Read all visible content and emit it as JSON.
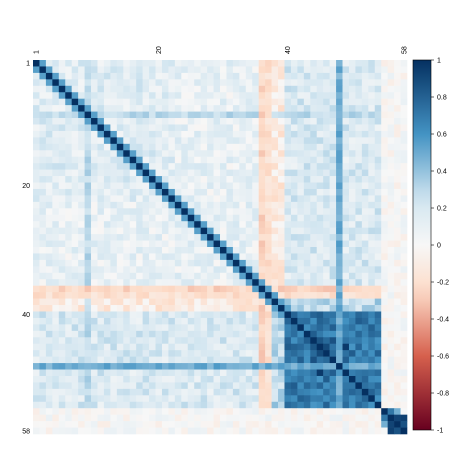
{
  "chart_data": {
    "type": "heatmap",
    "title": "",
    "xlabel": "",
    "ylabel": "",
    "n_vars": 58,
    "x_tick_labels": [
      "1",
      "20",
      "40",
      "58"
    ],
    "y_tick_labels": [
      "1",
      "20",
      "40",
      "58"
    ],
    "x_tick_indices": [
      1,
      20,
      40,
      58
    ],
    "y_tick_indices": [
      1,
      20,
      40,
      58
    ],
    "value_range": [
      -1,
      1
    ],
    "diagonal_value": 1,
    "colorbar": {
      "ticks": [
        "1",
        "0.8",
        "0.6",
        "0.4",
        "0.2",
        "0",
        "-0.2",
        "-0.4",
        "-0.6",
        "-0.8",
        "-1"
      ],
      "tick_values": [
        1,
        0.8,
        0.6,
        0.4,
        0.2,
        0,
        -0.2,
        -0.4,
        -0.6,
        -0.8,
        -1
      ],
      "colors": {
        "neg_strong": "#67001f",
        "neg_mid": "#d6604d",
        "neg_light": "#fddbc7",
        "neutral": "#f7f7f7",
        "pos_light": "#d1e5f0",
        "pos_mid": "#4393c3",
        "pos_strong": "#053061"
      }
    },
    "blocks": [
      {
        "rows": [
          1,
          22
        ],
        "cols": [
          1,
          22
        ],
        "value": 0.15
      },
      {
        "rows": [
          1,
          22
        ],
        "cols": [
          37,
          54
        ],
        "value": 0.2
      },
      {
        "rows": [
          23,
          35
        ],
        "cols": [
          1,
          35
        ],
        "value": 0.1
      },
      {
        "rows": [
          36,
          39
        ],
        "cols": [
          1,
          35
        ],
        "value": -0.12
      },
      {
        "rows": [
          36,
          39
        ],
        "cols": [
          36,
          54
        ],
        "value": 0.3
      },
      {
        "rows": [
          40,
          54
        ],
        "cols": [
          1,
          35
        ],
        "value": 0.18
      },
      {
        "rows": [
          40,
          54
        ],
        "cols": [
          40,
          54
        ],
        "value": 0.7
      },
      {
        "rows": [
          44,
          49
        ],
        "cols": [
          44,
          49
        ],
        "value": 0.85
      },
      {
        "rows": [
          55,
          57
        ],
        "cols": [
          55,
          57
        ],
        "value": 0.6
      },
      {
        "rows": [
          56,
          58
        ],
        "cols": [
          56,
          58
        ],
        "value": 0.9
      }
    ],
    "bands": [
      {
        "axis": "col",
        "index": 9,
        "value": 0.3
      },
      {
        "axis": "col",
        "index": 36,
        "value": -0.25
      },
      {
        "axis": "col",
        "index": 37,
        "value": -0.2
      },
      {
        "axis": "col",
        "index": 48,
        "value": 0.5
      }
    ]
  }
}
